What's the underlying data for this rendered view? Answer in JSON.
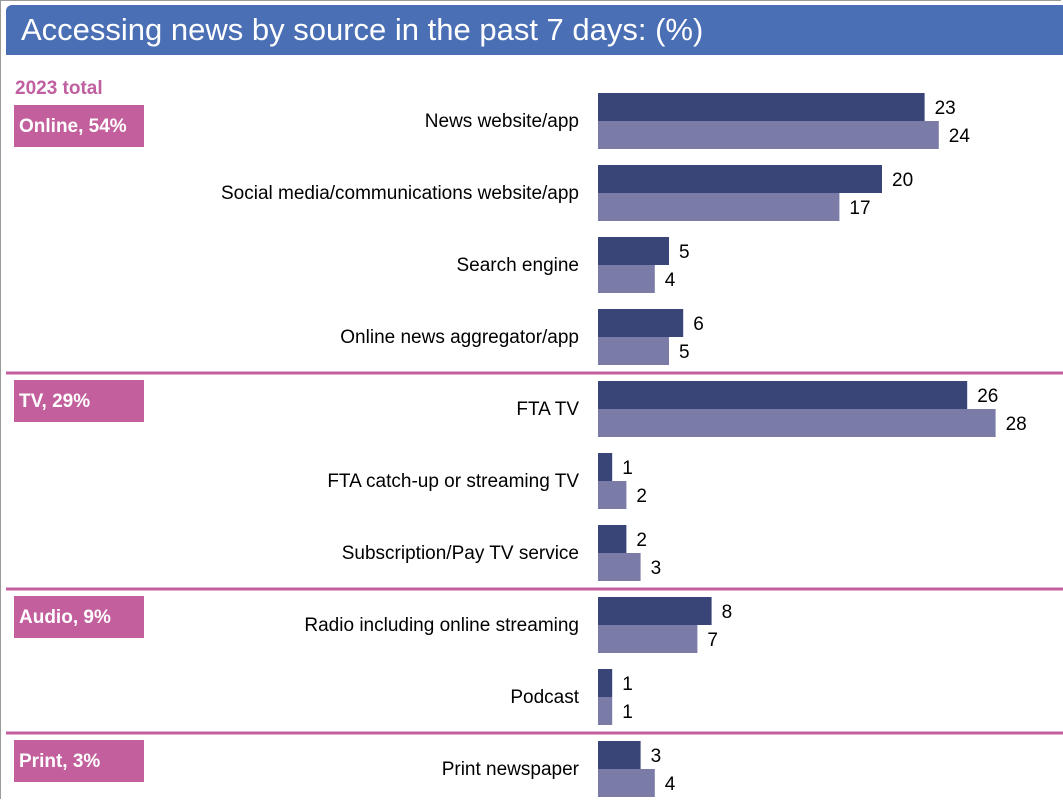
{
  "title": "Accessing news by source in the past 7 days: (%)",
  "group_header": "2023 total",
  "colors": {
    "title_bg": "#4b6fb5",
    "group_badge": "#c25f9c",
    "divider": "#c25f9c",
    "series_dark": "#3a4577",
    "series_light": "#7b7ba8"
  },
  "chart_data": {
    "type": "bar",
    "orientation": "horizontal",
    "title": "Accessing news by source in the past 7 days: (%)",
    "xlim": [
      0,
      30
    ],
    "groups": [
      {
        "label": "Online, 54%",
        "categories": [
          "News website/app",
          "Social media/communications website/app",
          "Search engine",
          "Online news aggregator/app"
        ]
      },
      {
        "label": "TV, 29%",
        "categories": [
          "FTA TV",
          "FTA catch-up or streaming TV",
          "Subscription/Pay TV service"
        ]
      },
      {
        "label": "Audio, 9%",
        "categories": [
          "Radio including online streaming",
          "Podcast"
        ]
      },
      {
        "label": "Print, 3%",
        "categories": [
          "Print newspaper"
        ]
      }
    ],
    "categories": [
      "News website/app",
      "Social media/communications website/app",
      "Search engine",
      "Online news aggregator/app",
      "FTA TV",
      "FTA catch-up or streaming TV",
      "Subscription/Pay TV service",
      "Radio including online streaming",
      "Podcast",
      "Print newspaper"
    ],
    "series": [
      {
        "values": [
          23,
          20,
          5,
          6,
          26,
          1,
          2,
          8,
          1,
          3
        ]
      },
      {
        "values": [
          24,
          17,
          4,
          5,
          28,
          2,
          3,
          7,
          1,
          4
        ]
      }
    ],
    "data_labels": true,
    "legend": "none",
    "grid": false
  }
}
